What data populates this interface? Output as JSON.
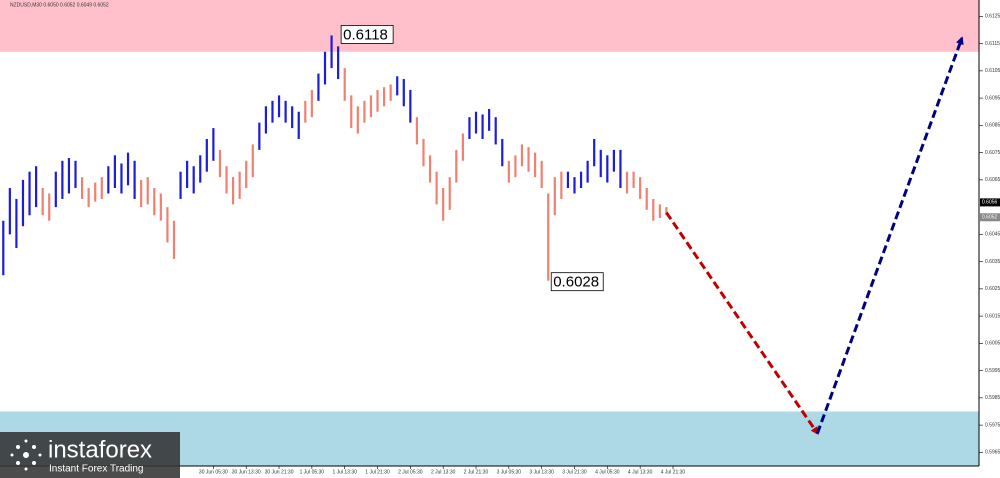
{
  "chart_data": {
    "type": "ohlc",
    "title": "NZDUSD,M30  0.6050 0.6052 0.6049 0.6052",
    "ylim": [
      0.596,
      0.6131
    ],
    "xlim": [
      -0.5,
      148
    ],
    "yticks": [
      0.6125,
      0.6115,
      0.6105,
      0.6095,
      0.6085,
      0.6075,
      0.6065,
      0.6045,
      0.6035,
      0.6025,
      0.6015,
      0.6005,
      0.5995,
      0.5985,
      0.5975,
      0.5965
    ],
    "xticks": [
      {
        "value": 32,
        "label": "30 Jun 05:30"
      },
      {
        "value": 37,
        "label": "30 Jun 13:30"
      },
      {
        "value": 42,
        "label": "30 Jun 21:30"
      },
      {
        "value": 47,
        "label": "1 Jul 05:30"
      },
      {
        "value": 52,
        "label": "1 Jul 13:30"
      },
      {
        "value": 57,
        "label": "1 Jul 21:30"
      },
      {
        "value": 62,
        "label": "2 Jul 05:30"
      },
      {
        "value": 67,
        "label": "2 Jul 13:30"
      },
      {
        "value": 72,
        "label": "2 Jul 21:30"
      },
      {
        "value": 77,
        "label": "3 Jul 05:30"
      },
      {
        "value": 82,
        "label": "3 Jul 13:30"
      },
      {
        "value": 87,
        "label": "3 Jul 21:30"
      },
      {
        "value": 92,
        "label": "4 Jul 05:30"
      },
      {
        "value": 97,
        "label": "4 Jul 13:30"
      },
      {
        "value": 102,
        "label": "4 Jul 21:30"
      }
    ],
    "grid": false,
    "zones": [
      {
        "from": 0.6112,
        "to": 0.6131,
        "color": "#ffc0cb"
      },
      {
        "from": 0.596,
        "to": 0.598,
        "color": "#add8e6"
      }
    ],
    "segments": [
      {
        "color": "#1c1cdb",
        "lows": [
          0.603,
          0.6045,
          0.604,
          0.6048,
          0.6052,
          0.6055
        ],
        "highs": [
          0.605,
          0.6062,
          0.6058,
          0.6065,
          0.6068,
          0.607
        ]
      },
      {
        "color": "#f08070",
        "lows": [
          0.6052,
          0.605
        ],
        "highs": [
          0.6062,
          0.606
        ]
      },
      {
        "color": "#1c1cdb",
        "lows": [
          0.6055,
          0.6058,
          0.606,
          0.6062
        ],
        "highs": [
          0.6068,
          0.6072,
          0.6073,
          0.6072
        ]
      },
      {
        "color": "#f08070",
        "lows": [
          0.6058,
          0.6055,
          0.6057,
          0.6058
        ],
        "highs": [
          0.6066,
          0.6062,
          0.6064,
          0.6066
        ]
      },
      {
        "color": "#1c1cdb",
        "lows": [
          0.606,
          0.6062,
          0.606,
          0.6063,
          0.6058
        ],
        "highs": [
          0.607,
          0.6074,
          0.6071,
          0.6075,
          0.6072
        ]
      },
      {
        "color": "#f08070",
        "lows": [
          0.6055,
          0.6056,
          0.6052,
          0.605,
          0.6042,
          0.6036
        ],
        "highs": [
          0.6065,
          0.6066,
          0.6062,
          0.606,
          0.6055,
          0.605
        ]
      },
      {
        "color": "#1c1cdb",
        "lows": [
          0.6058,
          0.6062,
          0.606,
          0.6064,
          0.6068,
          0.6072
        ],
        "highs": [
          0.6068,
          0.6072,
          0.607,
          0.6074,
          0.608,
          0.6084
        ]
      },
      {
        "color": "#f08070",
        "lows": [
          0.6066,
          0.606,
          0.6056,
          0.6058,
          0.6062,
          0.6066
        ],
        "highs": [
          0.6076,
          0.607,
          0.6066,
          0.6068,
          0.6072,
          0.6078
        ]
      },
      {
        "color": "#1c1cdb",
        "lows": [
          0.6076,
          0.6082,
          0.6086,
          0.6088,
          0.6086,
          0.6084,
          0.608
        ],
        "highs": [
          0.6086,
          0.6092,
          0.6094,
          0.6096,
          0.6094,
          0.6092,
          0.609
        ]
      },
      {
        "color": "#f08070",
        "lows": [
          0.6086,
          0.6088
        ],
        "highs": [
          0.6094,
          0.6098
        ]
      },
      {
        "color": "#1c1cdb",
        "lows": [
          0.6094,
          0.61,
          0.6106,
          0.6102
        ],
        "highs": [
          0.6104,
          0.6112,
          0.6118,
          0.6114
        ]
      },
      {
        "color": "#f08070",
        "lows": [
          0.6094,
          0.6084,
          0.6082,
          0.6086,
          0.6088,
          0.609,
          0.6092,
          0.6094
        ],
        "highs": [
          0.6106,
          0.6096,
          0.6092,
          0.6094,
          0.6096,
          0.6098,
          0.6099,
          0.61
        ]
      },
      {
        "color": "#1c1cdb",
        "lows": [
          0.6096,
          0.6092,
          0.6086
        ],
        "highs": [
          0.6103,
          0.6102,
          0.6098
        ]
      },
      {
        "color": "#f08070",
        "lows": [
          0.6078,
          0.607,
          0.6064,
          0.6056,
          0.605,
          0.6054,
          0.6064,
          0.6072
        ],
        "highs": [
          0.6088,
          0.608,
          0.6074,
          0.6068,
          0.6062,
          0.6066,
          0.6076,
          0.6082
        ]
      },
      {
        "color": "#1c1cdb",
        "lows": [
          0.608,
          0.6082,
          0.608,
          0.6083,
          0.6078,
          0.607
        ],
        "highs": [
          0.6088,
          0.609,
          0.6089,
          0.6091,
          0.6088,
          0.608
        ]
      },
      {
        "color": "#f08070",
        "lows": [
          0.6064,
          0.6066,
          0.607,
          0.6068,
          0.6066,
          0.6062,
          0.6028,
          0.6052,
          0.6058
        ],
        "highs": [
          0.6072,
          0.6074,
          0.6078,
          0.6077,
          0.6075,
          0.6072,
          0.606,
          0.6066,
          0.6068
        ]
      },
      {
        "color": "#1c1cdb",
        "lows": [
          0.6062,
          0.606,
          0.6062,
          0.6064,
          0.607,
          0.6066,
          0.6064,
          0.6068,
          0.6062
        ],
        "highs": [
          0.6068,
          0.6066,
          0.6068,
          0.6072,
          0.608,
          0.6076,
          0.6074,
          0.6076,
          0.6076
        ]
      },
      {
        "color": "#f08070",
        "lows": [
          0.606,
          0.6062,
          0.6058,
          0.6054,
          0.605,
          0.6051,
          0.6052
        ],
        "highs": [
          0.6068,
          0.6068,
          0.6066,
          0.6062,
          0.6058,
          0.6056,
          0.6055
        ]
      }
    ],
    "annotations": [
      {
        "x": 51,
        "value": 0.6118
      },
      {
        "x": 83,
        "value": 0.6028
      }
    ],
    "price_tags": [
      0.6056,
      0.6052
    ],
    "forecast": [
      {
        "color": "#c00000",
        "x": [
          101,
          124
        ],
        "y": [
          0.6053,
          0.5972
        ]
      },
      {
        "color": "#000080",
        "x": [
          124,
          146
        ],
        "y": [
          0.5972,
          0.6117
        ]
      }
    ],
    "watermark": {
      "brand": "instaforex",
      "tagline": "Instant Forex Trading"
    }
  }
}
